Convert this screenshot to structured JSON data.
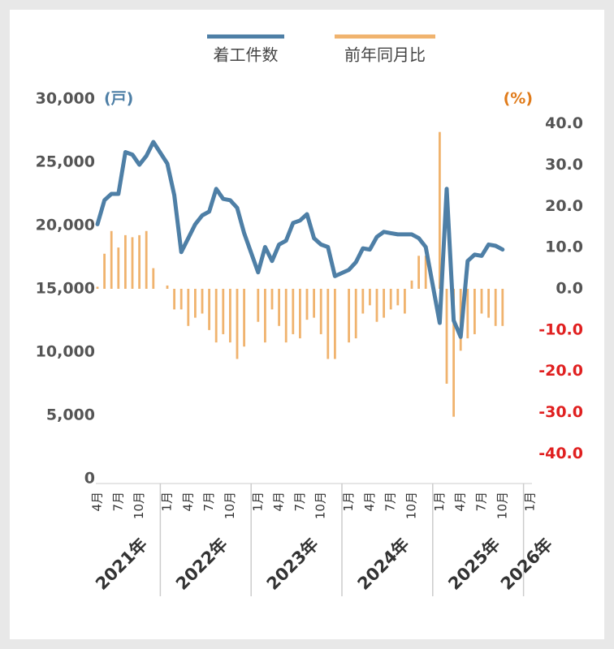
{
  "chart_data": {
    "type": "combo",
    "y_unit": "(戸)",
    "y_unit_color": "#4e7fa6",
    "y2_unit": "(%)",
    "y2_unit_color": "#e07b1a",
    "tick_color": "#555555",
    "y2tick_negative_color": "#e02020",
    "groups": [
      {
        "label": "2021年",
        "months": [
          "4月",
          null,
          null,
          "7月",
          null,
          null,
          "10月",
          null,
          null
        ]
      },
      {
        "label": "2022年",
        "months": [
          "1月",
          null,
          null,
          "4月",
          null,
          null,
          "7月",
          null,
          null,
          "10月",
          null,
          null
        ]
      },
      {
        "label": "2023年",
        "months": [
          "1月",
          null,
          null,
          "4月",
          null,
          null,
          "7月",
          null,
          null,
          "10月",
          null,
          null
        ]
      },
      {
        "label": "2024年",
        "months": [
          "1月",
          null,
          null,
          "4月",
          null,
          null,
          "7月",
          null,
          null,
          "10月",
          null,
          null
        ]
      },
      {
        "label": "2025年",
        "months": [
          "1月",
          null,
          null,
          "4月",
          null,
          null,
          "7月",
          null,
          null,
          "10月",
          null,
          null
        ]
      },
      {
        "label": "2026年",
        "months": [
          "1月"
        ]
      }
    ],
    "series": [
      {
        "name": "着工件数",
        "type": "line",
        "axis": "y",
        "color": "#4e7fa6",
        "values": [
          20100,
          22000,
          22500,
          22500,
          25800,
          25600,
          24800,
          25500,
          26600,
          24900,
          22400,
          17900,
          19000,
          20100,
          20800,
          21100,
          22900,
          22100,
          22000,
          21400,
          19400,
          16300,
          18300,
          17200,
          18500,
          18800,
          20200,
          20400,
          20900,
          19000,
          18500,
          18300,
          16000,
          16500,
          17100,
          18200,
          18100,
          19100,
          19500,
          19400,
          19300,
          19300,
          19300,
          19000,
          18300,
          12300,
          22900,
          12500,
          11200,
          17200,
          17700,
          17600,
          18500,
          18400,
          18100,
          null,
          null,
          null
        ]
      },
      {
        "name": "前年同月比",
        "type": "bar",
        "axis": "y2",
        "color": "#f0b36e",
        "values": [
          0.5,
          8.5,
          14,
          10,
          13,
          12.5,
          13,
          14,
          5,
          0.8,
          -5,
          -5,
          -9,
          -7,
          -6,
          -10,
          -13,
          -11,
          -13,
          -17,
          -14,
          -8,
          -13,
          -5,
          -9,
          -13,
          -11,
          -12,
          -7.5,
          -7,
          -11,
          -17,
          -17,
          -13,
          -12,
          -6,
          -4,
          -8,
          -7,
          -5,
          -4,
          -6,
          2,
          8,
          8,
          38,
          -23,
          -31,
          -15,
          -12,
          -11,
          -6,
          -7,
          -9,
          -9,
          null,
          null,
          null
        ]
      }
    ],
    "ylim": [
      0,
      30000
    ],
    "yticks": [
      0,
      {
        "value": 5000,
        "label": "5,000"
      },
      {
        "value": 10000,
        "label": "10,000"
      },
      {
        "value": 15000,
        "label": "15,000"
      },
      {
        "value": 20000,
        "label": "20,000"
      },
      {
        "value": 25000,
        "label": "25,000"
      },
      {
        "value": 30000,
        "label": "30,000"
      }
    ],
    "y2lim": [
      -46,
      46
    ],
    "y2ticks": [
      {
        "value": 40,
        "label": "40.0"
      },
      {
        "value": 30,
        "label": "30.0"
      },
      {
        "value": 20,
        "label": "20.0"
      },
      {
        "value": 10,
        "label": "10.0"
      },
      {
        "value": 0,
        "label": "0.0"
      },
      {
        "value": -10,
        "label": "-10.0"
      },
      {
        "value": -20,
        "label": "-20.0"
      },
      {
        "value": -30,
        "label": "-30.0"
      },
      {
        "value": -40,
        "label": "-40.0"
      }
    ]
  }
}
